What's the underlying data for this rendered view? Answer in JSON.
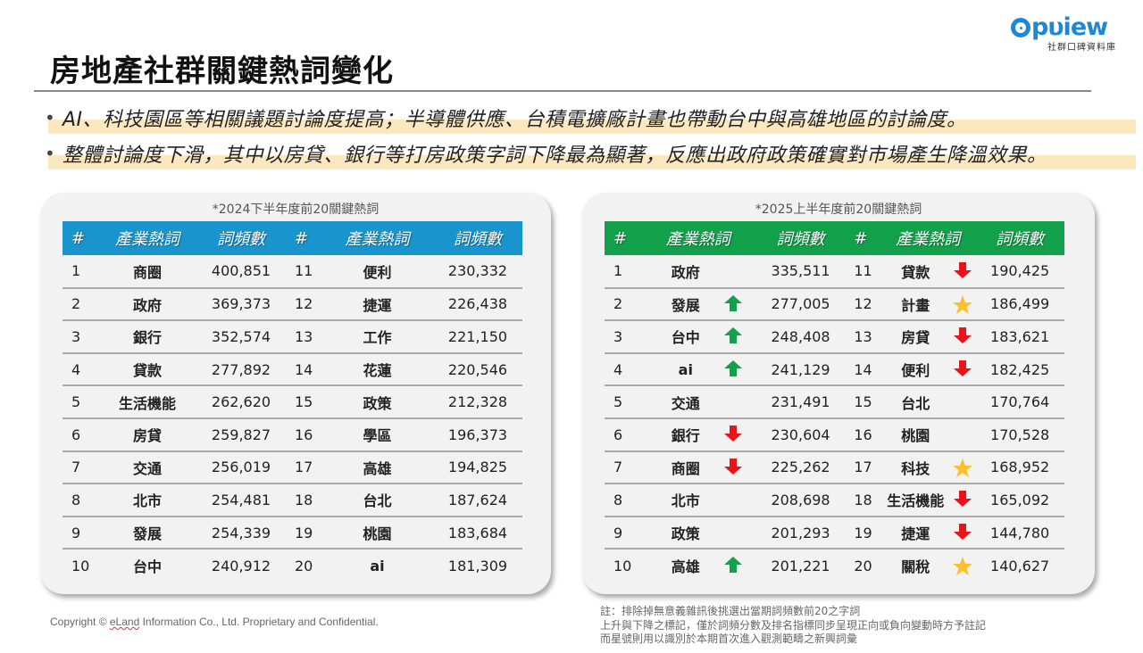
{
  "header": {
    "title": "房地產社群關鍵熱詞變化",
    "logo_word": "pυiew",
    "logo_tagline": "社群口碑資料庫"
  },
  "bullets": [
    "AI、科技園區等相關議題討論度提高；半導體供應、台積電擴廠計畫也帶動台中與高雄地區的討論度。",
    "整體討論度下滑，其中以房貸、銀行等打房政策字詞下降最為顯著，反應出政府政策確實對市場產生降溫效果。"
  ],
  "bullet_glyph": "•",
  "colors": {
    "left_header": "#1a94cd",
    "right_header": "#12a04b",
    "up_arrow": "#12a04b",
    "down_arrow": "#e8141a",
    "star": "#fbc02d",
    "highlight": "#fbe8bf"
  },
  "left_table": {
    "caption": "*2024下半年度前20關鍵熱詞",
    "headers": [
      "#",
      "產業熱詞",
      "詞頻數",
      "#",
      "產業熱詞",
      "詞頻數"
    ],
    "rows": [
      {
        "r1": "1",
        "t1": "商圈",
        "f1": "400,851",
        "r2": "11",
        "t2": "便利",
        "f2": "230,332"
      },
      {
        "r1": "2",
        "t1": "政府",
        "f1": "369,373",
        "r2": "12",
        "t2": "捷運",
        "f2": "226,438"
      },
      {
        "r1": "3",
        "t1": "銀行",
        "f1": "352,574",
        "r2": "13",
        "t2": "工作",
        "f2": "221,150"
      },
      {
        "r1": "4",
        "t1": "貸款",
        "f1": "277,892",
        "r2": "14",
        "t2": "花蓮",
        "f2": "220,546"
      },
      {
        "r1": "5",
        "t1": "生活機能",
        "f1": "262,620",
        "r2": "15",
        "t2": "政策",
        "f2": "212,328"
      },
      {
        "r1": "6",
        "t1": "房貸",
        "f1": "259,827",
        "r2": "16",
        "t2": "學區",
        "f2": "196,373"
      },
      {
        "r1": "7",
        "t1": "交通",
        "f1": "256,019",
        "r2": "17",
        "t2": "高雄",
        "f2": "194,825"
      },
      {
        "r1": "8",
        "t1": "北市",
        "f1": "254,481",
        "r2": "18",
        "t2": "台北",
        "f2": "187,624"
      },
      {
        "r1": "9",
        "t1": "發展",
        "f1": "254,339",
        "r2": "19",
        "t2": "桃園",
        "f2": "183,684"
      },
      {
        "r1": "10",
        "t1": "台中",
        "f1": "240,912",
        "r2": "20",
        "t2": "ai",
        "f2": "181,309"
      }
    ]
  },
  "right_table": {
    "caption": "*2025上半年度前20關鍵熱詞",
    "headers": [
      "#",
      "產業熱詞",
      "詞頻數",
      "#",
      "產業熱詞",
      "詞頻數"
    ],
    "rows": [
      {
        "r1": "1",
        "t1": "政府",
        "m1": "",
        "f1": "335,511",
        "r2": "11",
        "t2": "貸款",
        "m2": "down",
        "f2": "190,425"
      },
      {
        "r1": "2",
        "t1": "發展",
        "m1": "up",
        "f1": "277,005",
        "r2": "12",
        "t2": "計畫",
        "m2": "star",
        "f2": "186,499"
      },
      {
        "r1": "3",
        "t1": "台中",
        "m1": "up",
        "f1": "248,408",
        "r2": "13",
        "t2": "房貸",
        "m2": "down",
        "f2": "183,621"
      },
      {
        "r1": "4",
        "t1": "ai",
        "m1": "up",
        "f1": "241,129",
        "r2": "14",
        "t2": "便利",
        "m2": "down",
        "f2": "182,425"
      },
      {
        "r1": "5",
        "t1": "交通",
        "m1": "",
        "f1": "231,491",
        "r2": "15",
        "t2": "台北",
        "m2": "",
        "f2": "170,764"
      },
      {
        "r1": "6",
        "t1": "銀行",
        "m1": "down",
        "f1": "230,604",
        "r2": "16",
        "t2": "桃園",
        "m2": "",
        "f2": "170,528"
      },
      {
        "r1": "7",
        "t1": "商圈",
        "m1": "down",
        "f1": "225,262",
        "r2": "17",
        "t2": "科技",
        "m2": "star",
        "f2": "168,952"
      },
      {
        "r1": "8",
        "t1": "北市",
        "m1": "",
        "f1": "208,698",
        "r2": "18",
        "t2": "生活機能",
        "m2": "down",
        "f2": "165,092"
      },
      {
        "r1": "9",
        "t1": "政策",
        "m1": "",
        "f1": "201,293",
        "r2": "19",
        "t2": "捷運",
        "m2": "down",
        "f2": "144,780"
      },
      {
        "r1": "10",
        "t1": "高雄",
        "m1": "up",
        "f1": "201,221",
        "r2": "20",
        "t2": "關稅",
        "m2": "star",
        "f2": "140,627"
      }
    ]
  },
  "footer": {
    "copyright_prefix": "Copyright © ",
    "copyright_brand": "eLand",
    "copyright_suffix": " Information Co., Ltd. Proprietary and Confidential.",
    "notes": [
      "註：排除掉無意義雜訊後挑選出當期詞頻數前20之字詞",
      "上升與下降之標記，僅於詞頻分數及排名指標同步呈現正向或負向變動時方予註記",
      "而星號則用以識別於本期首次進入觀測範疇之新興詞彙"
    ]
  }
}
